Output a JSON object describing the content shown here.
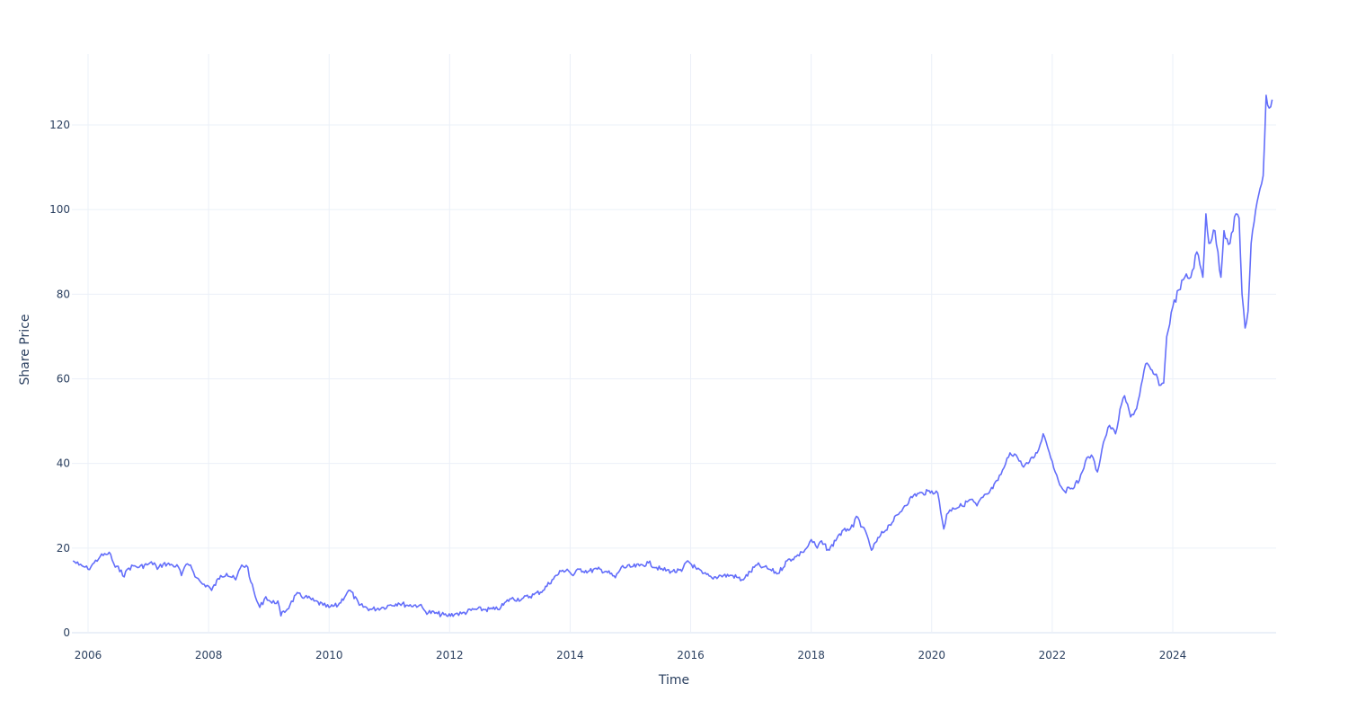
{
  "chart_data": {
    "type": "line",
    "title": "",
    "xlabel": "Time",
    "ylabel": "Share Price",
    "x_tick_labels": [
      "2006",
      "2008",
      "2010",
      "2012",
      "2014",
      "2016",
      "2018",
      "2020",
      "2022",
      "2024"
    ],
    "y_tick_labels": [
      "0",
      "20",
      "40",
      "60",
      "80",
      "100",
      "120"
    ],
    "xlim": [
      2005.73,
      2025.7
    ],
    "ylim": [
      -3,
      134
    ],
    "grid": true,
    "legend": null,
    "line_color": "#636efa",
    "series": [
      {
        "name": "Share Price",
        "x": [
          2005.75,
          2005.85,
          2005.95,
          2006.0,
          2006.1,
          2006.2,
          2006.3,
          2006.35,
          2006.45,
          2006.55,
          2006.6,
          2006.65,
          2006.75,
          2006.85,
          2007.0,
          2007.1,
          2007.15,
          2007.25,
          2007.4,
          2007.5,
          2007.55,
          2007.6,
          2007.7,
          2007.8,
          2007.9,
          2008.0,
          2008.05,
          2008.2,
          2008.3,
          2008.45,
          2008.55,
          2008.65,
          2008.7,
          2008.8,
          2008.85,
          2008.95,
          2009.05,
          2009.15,
          2009.2,
          2009.35,
          2009.45,
          2009.6,
          2009.75,
          2009.9,
          2010.0,
          2010.15,
          2010.3,
          2010.35,
          2010.5,
          2010.7,
          2010.9,
          2011.0,
          2011.15,
          2011.3,
          2011.5,
          2011.6,
          2011.8,
          2011.95,
          2012.1,
          2012.2,
          2012.4,
          2012.6,
          2012.75,
          2012.85,
          2013.0,
          2013.2,
          2013.4,
          2013.55,
          2013.7,
          2013.85,
          2013.95,
          2014.05,
          2014.15,
          2014.3,
          2014.45,
          2014.6,
          2014.75,
          2014.85,
          2015.0,
          2015.15,
          2015.3,
          2015.5,
          2015.7,
          2015.85,
          2015.95,
          2016.1,
          2016.2,
          2016.35,
          2016.5,
          2016.7,
          2016.85,
          2016.9,
          2017.1,
          2017.2,
          2017.3,
          2017.45,
          2017.6,
          2017.75,
          2017.85,
          2017.95,
          2018.0,
          2018.1,
          2018.15,
          2018.3,
          2018.45,
          2018.6,
          2018.7,
          2018.75,
          2018.85,
          2018.95,
          2019.0,
          2019.15,
          2019.3,
          2019.45,
          2019.55,
          2019.7,
          2019.85,
          2020.0,
          2020.1,
          2020.2,
          2020.25,
          2020.35,
          2020.5,
          2020.65,
          2020.75,
          2020.85,
          2020.95,
          2021.1,
          2021.2,
          2021.3,
          2021.4,
          2021.5,
          2021.6,
          2021.75,
          2021.85,
          2021.9,
          2022.0,
          2022.1,
          2022.2,
          2022.3,
          2022.45,
          2022.55,
          2022.65,
          2022.75,
          2022.85,
          2022.95,
          2023.05,
          2023.15,
          2023.2,
          2023.3,
          2023.4,
          2023.5,
          2023.55,
          2023.7,
          2023.8,
          2023.85,
          2023.9,
          2024.0,
          2024.1,
          2024.2,
          2024.3,
          2024.4,
          2024.5,
          2024.55,
          2024.6,
          2024.7,
          2024.8,
          2024.85,
          2024.95,
          2025.05,
          2025.1,
          2025.15,
          2025.2,
          2025.25,
          2025.3,
          2025.35,
          2025.45,
          2025.5,
          2025.55,
          2025.6,
          2025.65
        ],
        "y": [
          17.0,
          16.0,
          15.5,
          15.0,
          16.5,
          18.0,
          18.5,
          19.0,
          15.5,
          14.8,
          13.2,
          15.0,
          15.8,
          15.5,
          16.2,
          16.5,
          15.0,
          16.3,
          16.0,
          15.5,
          13.5,
          15.5,
          16.0,
          13.0,
          11.5,
          11.0,
          10.0,
          13.5,
          14.0,
          12.5,
          16.0,
          15.5,
          12.0,
          7.5,
          6.0,
          8.5,
          7.0,
          7.5,
          4.0,
          6.5,
          9.0,
          8.5,
          7.5,
          6.5,
          6.0,
          6.5,
          9.5,
          10.0,
          6.5,
          5.5,
          6.0,
          6.5,
          7.0,
          6.5,
          6.5,
          5.0,
          4.5,
          4.0,
          4.5,
          4.5,
          5.5,
          5.5,
          5.5,
          6.0,
          8.0,
          8.0,
          9.0,
          10.0,
          12.5,
          14.5,
          15.0,
          13.5,
          15.0,
          14.5,
          15.0,
          14.5,
          13.0,
          15.5,
          15.5,
          15.8,
          16.5,
          15.0,
          14.5,
          14.5,
          17.0,
          15.0,
          14.0,
          13.0,
          13.5,
          13.5,
          12.5,
          13.0,
          16.0,
          15.5,
          15.0,
          14.0,
          17.0,
          18.0,
          19.0,
          20.5,
          22.0,
          20.0,
          21.5,
          19.5,
          23.0,
          24.5,
          25.0,
          27.5,
          25.0,
          22.0,
          19.5,
          23.0,
          25.5,
          28.0,
          30.0,
          32.5,
          33.0,
          33.5,
          33.0,
          24.5,
          28.0,
          29.5,
          30.0,
          31.5,
          30.0,
          32.0,
          33.0,
          36.0,
          39.0,
          42.5,
          42.0,
          39.5,
          40.0,
          42.5,
          47.0,
          45.0,
          40.5,
          36.0,
          33.5,
          34.0,
          36.0,
          40.5,
          42.0,
          38.0,
          45.0,
          49.0,
          47.0,
          54.0,
          56.0,
          51.0,
          53.0,
          60.0,
          63.5,
          61.0,
          58.5,
          59.0,
          70.0,
          77.0,
          81.0,
          84.0,
          84.0,
          90.0,
          84.0,
          99.0,
          92.0,
          95.0,
          84.0,
          95.0,
          92.0,
          99.0,
          98.0,
          80.0,
          72.0,
          76.0,
          92.0,
          97.0,
          105.0,
          108.0,
          127.0,
          124.0,
          126.0
        ]
      }
    ]
  }
}
